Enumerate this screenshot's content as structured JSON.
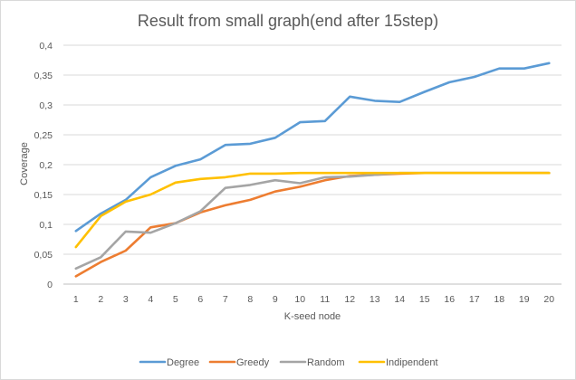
{
  "chart_data": {
    "type": "line",
    "title": "Result from small graph(end after 15step)",
    "xlabel": "K-seed node",
    "ylabel": "Coverage",
    "categories": [
      "1",
      "2",
      "3",
      "4",
      "5",
      "6",
      "7",
      "8",
      "9",
      "10",
      "11",
      "12",
      "13",
      "14",
      "15",
      "16",
      "17",
      "18",
      "19",
      "20"
    ],
    "ylim": [
      0,
      0.4
    ],
    "yticks": [
      "0",
      "0,05",
      "0,1",
      "0,15",
      "0,2",
      "0,25",
      "0,3",
      "0,35",
      "0,4"
    ],
    "grid": "horizontal",
    "legend_position": "bottom",
    "series": [
      {
        "name": "Degree",
        "color": "#5b9bd5",
        "values": [
          0.089,
          0.118,
          0.141,
          0.179,
          0.198,
          0.209,
          0.233,
          0.235,
          0.245,
          0.271,
          0.273,
          0.314,
          0.307,
          0.305,
          0.322,
          0.338,
          0.347,
          0.361,
          0.361,
          0.37
        ]
      },
      {
        "name": "Greedy",
        "color": "#ed7d31",
        "values": [
          0.013,
          0.037,
          0.056,
          0.095,
          0.102,
          0.12,
          0.132,
          0.141,
          0.155,
          0.163,
          0.174,
          0.181,
          0.183,
          0.185,
          0.186,
          0.186,
          0.186,
          0.186,
          0.186,
          0.186
        ]
      },
      {
        "name": "Random",
        "color": "#a5a5a5",
        "values": [
          0.026,
          0.045,
          0.088,
          0.086,
          0.102,
          0.122,
          0.161,
          0.166,
          0.174,
          0.169,
          0.179,
          0.18,
          0.183,
          0.186,
          0.186,
          0.186,
          0.186,
          0.186,
          0.186,
          0.186
        ]
      },
      {
        "name": "Indipendent",
        "color": "#ffc000",
        "values": [
          0.062,
          0.114,
          0.138,
          0.15,
          0.17,
          0.176,
          0.179,
          0.185,
          0.185,
          0.186,
          0.186,
          0.186,
          0.186,
          0.186,
          0.186,
          0.186,
          0.186,
          0.186,
          0.186,
          0.186
        ]
      }
    ]
  }
}
